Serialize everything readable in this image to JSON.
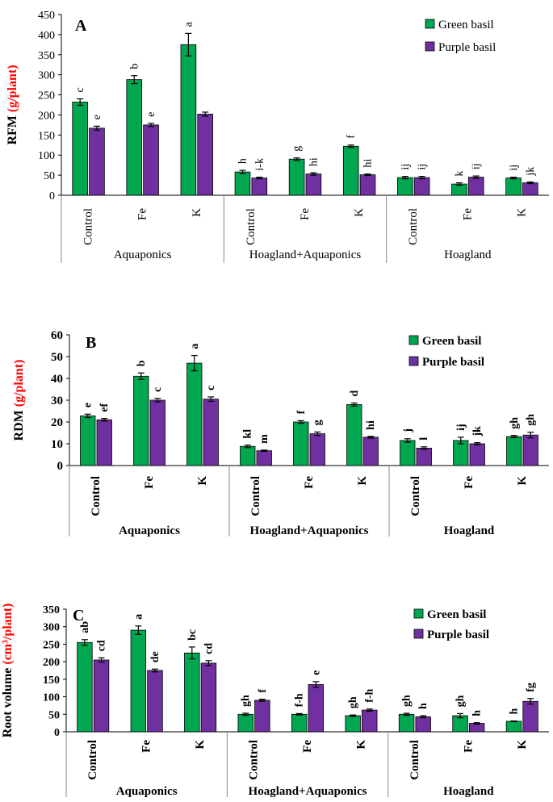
{
  "colors": {
    "green": "#00a650",
    "purple": "#7030a0",
    "axis": "#000000",
    "ylabel_unit": "#ff0000",
    "error_bar": "#000000"
  },
  "chart_data": [
    {
      "type": "bar",
      "panel_label": "A",
      "title": "",
      "ylabel_main": "RFM",
      "ylabel_unit": "(g/plant)",
      "ylim": [
        0,
        450
      ],
      "yticks": [
        "0",
        "50",
        "100",
        "150",
        "200",
        "250",
        "300",
        "350",
        "400",
        "450"
      ],
      "bold_labels": false,
      "categories": [
        "Control",
        "Fe",
        "K",
        "Control",
        "Fe",
        "K",
        "Control",
        "Fe",
        "K"
      ],
      "groups": [
        "Aquaponics",
        "Hoagland+Aquaponics",
        "Hoagland"
      ],
      "legend_position": "top-right",
      "series": [
        {
          "name": "Green basil",
          "color_key": "green",
          "values": [
            232,
            288,
            375,
            58,
            90,
            122,
            44,
            28,
            43
          ],
          "errors": [
            8,
            10,
            28,
            4,
            3,
            3,
            3,
            3,
            2
          ],
          "letters": [
            "c",
            "b",
            "a",
            "h",
            "g",
            "f",
            "ij",
            "k",
            "ij"
          ]
        },
        {
          "name": "Purple basil",
          "color_key": "purple",
          "values": [
            167,
            175,
            202,
            43,
            53,
            51,
            44,
            45,
            31
          ],
          "errors": [
            5,
            4,
            5,
            2,
            3,
            2,
            3,
            3,
            2
          ],
          "letters": [
            "e",
            "e",
            "",
            "i-k",
            "hi",
            "hi",
            "ij",
            "ij",
            "jk"
          ]
        }
      ]
    },
    {
      "type": "bar",
      "panel_label": "B",
      "title": "",
      "ylabel_main": "RDM",
      "ylabel_unit": "(g/plant)",
      "ylim": [
        0,
        60
      ],
      "yticks": [
        "0",
        "10",
        "20",
        "30",
        "40",
        "50",
        "60"
      ],
      "bold_labels": true,
      "categories": [
        "Control",
        "Fe",
        "K",
        "Control",
        "Fe",
        "K",
        "Control",
        "Fe",
        "K"
      ],
      "groups": [
        "Aquaponics",
        "Hoagland+Aquaponics",
        "Hoagland"
      ],
      "legend_position": "top-right",
      "series": [
        {
          "name": "Green basil",
          "color_key": "green",
          "values": [
            22.8,
            41,
            47,
            8.8,
            20,
            28,
            11.5,
            11.5,
            13.3
          ],
          "errors": [
            0.8,
            1.5,
            3.5,
            0.6,
            0.6,
            0.7,
            0.8,
            1.5,
            0.5
          ],
          "letters": [
            "e",
            "b",
            "a",
            "kl",
            "f",
            "d",
            "j",
            "ij",
            "gh"
          ]
        },
        {
          "name": "Purple basil",
          "color_key": "purple",
          "values": [
            21,
            30,
            30.5,
            6.8,
            14.6,
            13,
            8,
            10,
            14
          ],
          "errors": [
            0.6,
            0.8,
            1.0,
            0.3,
            0.8,
            0.4,
            0.6,
            0.5,
            1.3
          ],
          "letters": [
            "ef",
            "c",
            "c",
            "m",
            "g",
            "hi",
            "l",
            "jk",
            "gh"
          ]
        }
      ]
    },
    {
      "type": "bar",
      "panel_label": "C",
      "title": "",
      "ylabel_main": "Root volume",
      "ylabel_unit": "(cm³/plant)",
      "ylim": [
        0,
        350
      ],
      "yticks": [
        "0",
        "50",
        "100",
        "150",
        "200",
        "250",
        "300",
        "350"
      ],
      "bold_labels": true,
      "categories": [
        "Control",
        "Fe",
        "K",
        "Control",
        "Fe",
        "K",
        "Control",
        "Fe",
        "K"
      ],
      "groups": [
        "Aquaponics",
        "Hoagland+Aquaponics",
        "Hoagland"
      ],
      "legend_position": "top-right",
      "series": [
        {
          "name": "Green basil",
          "color_key": "green",
          "values": [
            255,
            290,
            225,
            50,
            50,
            46,
            50,
            46,
            30
          ],
          "errors": [
            8,
            12,
            17,
            3,
            2,
            2,
            3,
            6,
            1
          ],
          "letters": [
            "ab",
            "a",
            "bc",
            "gh",
            "f-h",
            "gh",
            "gh",
            "gh",
            "h"
          ]
        },
        {
          "name": "Purple basil",
          "color_key": "purple",
          "values": [
            205,
            175,
            196,
            90,
            135,
            62,
            43,
            24,
            87
          ],
          "errors": [
            6,
            4,
            7,
            3,
            8,
            3,
            3,
            2,
            8
          ],
          "letters": [
            "cd",
            "de",
            "cd",
            "f",
            "e",
            "f-h",
            "h",
            "h",
            "fg"
          ]
        }
      ]
    }
  ]
}
